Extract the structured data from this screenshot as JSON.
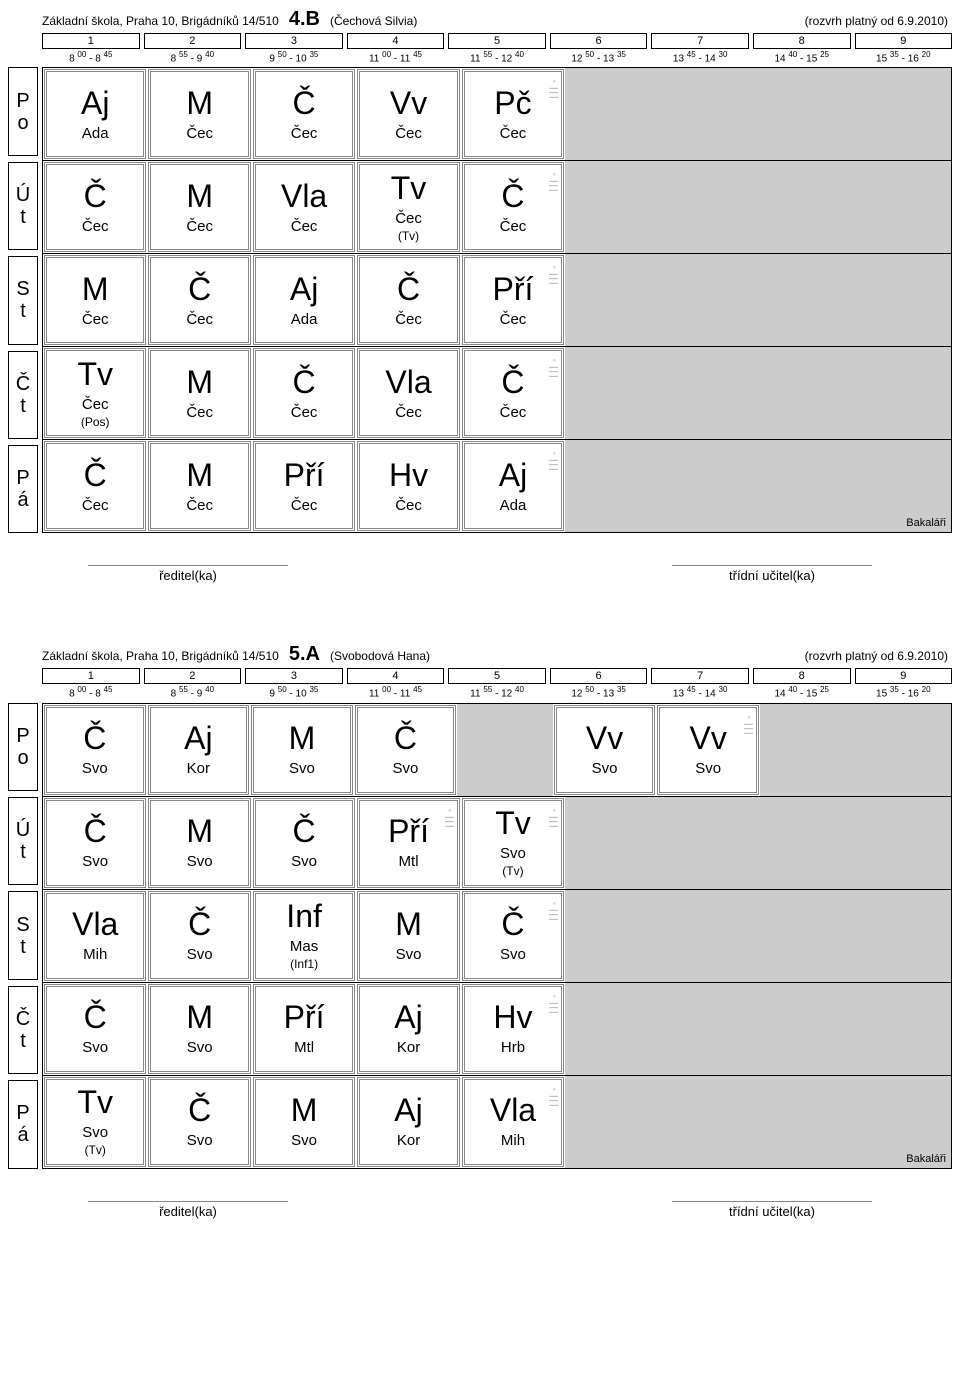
{
  "colors": {
    "bg": "#ffffff",
    "empty_bg": "#cccccc",
    "border": "#000000",
    "cell_border": "#888888",
    "deco": "#999999"
  },
  "fonts": {
    "header": 12,
    "class_code": 20,
    "period_num": 11,
    "time": 10,
    "day": 20,
    "subject": 32,
    "teacher_code": 15,
    "room": 12,
    "sig": 13
  },
  "periods": [
    {
      "n": "1",
      "t1": "8",
      "s1": "00",
      "t2": "8",
      "s2": "45"
    },
    {
      "n": "2",
      "t1": "8",
      "s1": "55",
      "t2": "9",
      "s2": "40"
    },
    {
      "n": "3",
      "t1": "9",
      "s1": "50",
      "t2": "10",
      "s2": "35"
    },
    {
      "n": "4",
      "t1": "11",
      "s1": "00",
      "t2": "11",
      "s2": "45"
    },
    {
      "n": "5",
      "t1": "11",
      "s1": "55",
      "t2": "12",
      "s2": "40"
    },
    {
      "n": "6",
      "t1": "12",
      "s1": "50",
      "t2": "13",
      "s2": "35"
    },
    {
      "n": "7",
      "t1": "13",
      "s1": "45",
      "t2": "14",
      "s2": "30"
    },
    {
      "n": "8",
      "t1": "14",
      "s1": "40",
      "t2": "15",
      "s2": "25"
    },
    {
      "n": "9",
      "t1": "15",
      "s1": "35",
      "t2": "16",
      "s2": "20"
    }
  ],
  "days": [
    {
      "a": "P",
      "b": "o"
    },
    {
      "a": "Ú",
      "b": "t"
    },
    {
      "a": "S",
      "b": "t"
    },
    {
      "a": "Č",
      "b": "t"
    },
    {
      "a": "P",
      "b": "á"
    }
  ],
  "sig_left": "ředitel(ka)",
  "sig_right": "třídní učitel(ka)",
  "badge": "Bakaláři",
  "timetables": [
    {
      "school": "Základní škola, Praha 10, Brigádníků 14/510",
      "class_code": "4.B",
      "teacher": "(Čechová Silvia)",
      "valid": "(rozvrh platný od 6.9.2010)",
      "rows": [
        [
          {
            "subj": "Aj",
            "t": "Ada"
          },
          {
            "subj": "M",
            "t": "Čec"
          },
          {
            "subj": "Č",
            "t": "Čec"
          },
          {
            "subj": "Vv",
            "t": "Čec"
          },
          {
            "subj": "Pč",
            "t": "Čec",
            "deco": true
          },
          null,
          null,
          null,
          null
        ],
        [
          {
            "subj": "Č",
            "t": "Čec"
          },
          {
            "subj": "M",
            "t": "Čec"
          },
          {
            "subj": "Vla",
            "t": "Čec"
          },
          {
            "subj": "Tv",
            "t": "Čec",
            "room": "(Tv)"
          },
          {
            "subj": "Č",
            "t": "Čec",
            "deco": true
          },
          null,
          null,
          null,
          null
        ],
        [
          {
            "subj": "M",
            "t": "Čec"
          },
          {
            "subj": "Č",
            "t": "Čec"
          },
          {
            "subj": "Aj",
            "t": "Ada"
          },
          {
            "subj": "Č",
            "t": "Čec"
          },
          {
            "subj": "Pří",
            "t": "Čec",
            "deco": true
          },
          null,
          null,
          null,
          null
        ],
        [
          {
            "subj": "Tv",
            "t": "Čec",
            "room": "(Pos)"
          },
          {
            "subj": "M",
            "t": "Čec"
          },
          {
            "subj": "Č",
            "t": "Čec"
          },
          {
            "subj": "Vla",
            "t": "Čec"
          },
          {
            "subj": "Č",
            "t": "Čec",
            "deco": true
          },
          null,
          null,
          null,
          null
        ],
        [
          {
            "subj": "Č",
            "t": "Čec"
          },
          {
            "subj": "M",
            "t": "Čec"
          },
          {
            "subj": "Pří",
            "t": "Čec"
          },
          {
            "subj": "Hv",
            "t": "Čec"
          },
          {
            "subj": "Aj",
            "t": "Ada",
            "deco": true
          },
          null,
          null,
          null,
          null
        ]
      ]
    },
    {
      "school": "Základní škola, Praha 10, Brigádníků 14/510",
      "class_code": "5.A",
      "teacher": "(Svobodová Hana)",
      "valid": "(rozvrh platný od 6.9.2010)",
      "rows": [
        [
          {
            "subj": "Č",
            "t": "Svo"
          },
          {
            "subj": "Aj",
            "t": "Kor"
          },
          {
            "subj": "M",
            "t": "Svo"
          },
          {
            "subj": "Č",
            "t": "Svo"
          },
          null,
          {
            "subj": "Vv",
            "t": "Svo"
          },
          {
            "subj": "Vv",
            "t": "Svo",
            "deco": true
          },
          null,
          null
        ],
        [
          {
            "subj": "Č",
            "t": "Svo"
          },
          {
            "subj": "M",
            "t": "Svo"
          },
          {
            "subj": "Č",
            "t": "Svo"
          },
          {
            "subj": "Pří",
            "t": "Mtl",
            "deco": true
          },
          {
            "subj": "Tv",
            "t": "Svo",
            "room": "(Tv)",
            "deco": true
          },
          null,
          null,
          null,
          null
        ],
        [
          {
            "subj": "Vla",
            "t": "Mih"
          },
          {
            "subj": "Č",
            "t": "Svo"
          },
          {
            "subj": "Inf",
            "t": "Mas",
            "room": "(Inf1)"
          },
          {
            "subj": "M",
            "t": "Svo"
          },
          {
            "subj": "Č",
            "t": "Svo",
            "deco": true
          },
          null,
          null,
          null,
          null
        ],
        [
          {
            "subj": "Č",
            "t": "Svo"
          },
          {
            "subj": "M",
            "t": "Svo"
          },
          {
            "subj": "Pří",
            "t": "Mtl"
          },
          {
            "subj": "Aj",
            "t": "Kor"
          },
          {
            "subj": "Hv",
            "t": "Hrb",
            "deco": true
          },
          null,
          null,
          null,
          null
        ],
        [
          {
            "subj": "Tv",
            "t": "Svo",
            "room": "(Tv)"
          },
          {
            "subj": "Č",
            "t": "Svo"
          },
          {
            "subj": "M",
            "t": "Svo"
          },
          {
            "subj": "Aj",
            "t": "Kor"
          },
          {
            "subj": "Vla",
            "t": "Mih",
            "deco": true
          },
          null,
          null,
          null,
          null
        ]
      ]
    }
  ]
}
